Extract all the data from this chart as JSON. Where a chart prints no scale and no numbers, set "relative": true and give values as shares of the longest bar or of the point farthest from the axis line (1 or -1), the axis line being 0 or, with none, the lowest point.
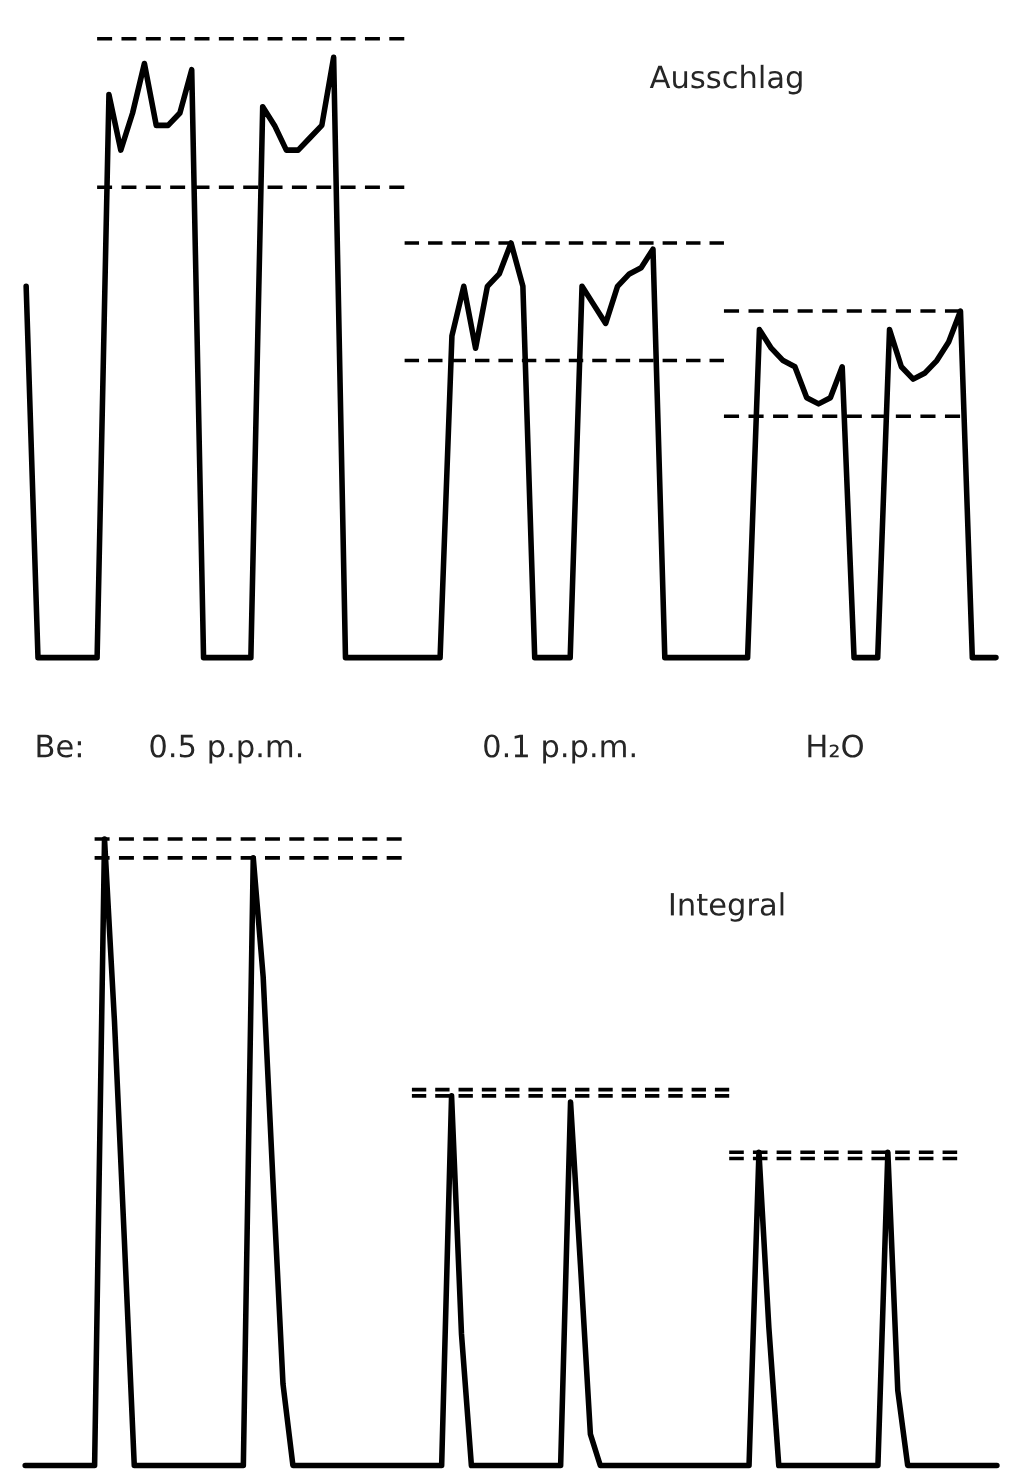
{
  "chart_data": [
    {
      "type": "line",
      "title": "Ausschlag",
      "relative": true,
      "annotations": [
        "Be:",
        "0.5 p.p.m.",
        "0.1 p.p.m.",
        "H₂O"
      ],
      "categories": [
        null,
        null,
        null,
        null,
        null,
        null,
        null,
        null,
        null,
        null,
        null,
        null,
        null,
        null,
        null,
        null,
        null,
        null,
        null,
        null,
        null,
        null,
        null,
        null,
        null,
        null,
        null,
        null,
        null,
        null,
        null,
        null,
        null,
        null,
        null,
        null,
        null,
        null,
        null,
        null,
        null,
        null,
        null,
        null,
        null,
        null,
        null,
        null,
        null,
        null,
        null,
        null,
        null,
        null,
        null,
        null,
        null,
        null,
        null,
        null,
        null,
        null,
        null,
        null,
        null,
        null,
        null,
        null,
        null,
        null,
        null,
        null,
        null,
        null,
        null,
        null,
        null,
        null,
        null,
        null,
        null,
        null,
        null
      ],
      "series": [
        {
          "color": "#000000",
          "line_style": "solid",
          "values": [
            0.6,
            0,
            0,
            0,
            0,
            0,
            0,
            0.91,
            0.82,
            0.88,
            0.96,
            0.86,
            0.86,
            0.88,
            0.95,
            0,
            0,
            0,
            0,
            0,
            0.89,
            0.86,
            0.82,
            0.82,
            0.84,
            0.86,
            0.97,
            0,
            0,
            0,
            0,
            0,
            0,
            0,
            0,
            0,
            0.52,
            0.6,
            0.5,
            0.6,
            0.62,
            0.67,
            0.6,
            0,
            0,
            0,
            0,
            0.6,
            0.57,
            0.54,
            0.6,
            0.62,
            0.63,
            0.66,
            0,
            0,
            0,
            0,
            0,
            0,
            0,
            0,
            0.53,
            0.5,
            0.48,
            0.47,
            0.42,
            0.41,
            0.42,
            0.47,
            0,
            0,
            0,
            0.53,
            0.47,
            0.45,
            0.46,
            0.48,
            0.51,
            0.56,
            0,
            0,
            0
          ]
        },
        {
          "color": "#000000",
          "line_style": "dashed",
          "values": [
            null,
            null,
            null,
            null,
            null,
            null,
            1,
            1,
            1,
            1,
            1,
            1,
            1,
            1,
            1,
            1,
            1,
            1,
            1,
            1,
            1,
            1,
            1,
            1,
            1,
            1,
            1,
            1,
            1,
            1,
            1,
            1,
            1,
            null,
            null,
            null,
            null,
            null,
            null,
            null,
            null,
            null,
            null,
            null,
            null,
            null,
            null,
            null,
            null,
            null,
            null,
            null,
            null,
            null,
            null,
            null,
            null,
            null,
            null,
            null,
            null,
            null,
            null,
            null,
            null,
            null,
            null,
            null,
            null,
            null,
            null,
            null,
            null,
            null,
            null,
            null,
            null,
            null,
            null,
            null,
            null,
            null,
            null
          ]
        },
        {
          "color": "#000000",
          "line_style": "dashed",
          "values": [
            null,
            null,
            null,
            null,
            null,
            null,
            0.76,
            0.76,
            0.76,
            0.76,
            0.76,
            0.76,
            0.76,
            0.76,
            0.76,
            0.76,
            0.76,
            0.76,
            0.76,
            0.76,
            0.76,
            0.76,
            0.76,
            0.76,
            0.76,
            0.76,
            0.76,
            0.76,
            0.76,
            0.76,
            0.76,
            0.76,
            0.76,
            null,
            null,
            null,
            null,
            null,
            null,
            null,
            null,
            null,
            null,
            null,
            null,
            null,
            null,
            null,
            null,
            null,
            null,
            null,
            null,
            null,
            null,
            null,
            null,
            null,
            null,
            null,
            null,
            null,
            null,
            null,
            null,
            null,
            null,
            null,
            null,
            null,
            null,
            null,
            null,
            null,
            null,
            null,
            null,
            null,
            null,
            null,
            null,
            null,
            null
          ]
        },
        {
          "color": "#000000",
          "line_style": "dashed",
          "values": [
            null,
            null,
            null,
            null,
            null,
            null,
            null,
            null,
            null,
            null,
            null,
            null,
            null,
            null,
            null,
            null,
            null,
            null,
            null,
            null,
            null,
            null,
            null,
            null,
            null,
            null,
            null,
            null,
            null,
            null,
            null,
            null,
            0.67,
            0.67,
            0.67,
            0.67,
            0.67,
            0.67,
            0.67,
            0.67,
            0.67,
            0.67,
            0.67,
            0.67,
            0.67,
            0.67,
            0.67,
            0.67,
            0.67,
            0.67,
            0.67,
            0.67,
            0.67,
            0.67,
            0.67,
            0.67,
            0.67,
            0.67,
            0.67,
            0.67,
            null,
            null,
            null,
            null,
            null,
            null,
            null,
            null,
            null,
            null,
            null,
            null,
            null,
            null,
            null,
            null,
            null,
            null,
            null,
            null,
            null,
            null,
            null
          ]
        },
        {
          "color": "#000000",
          "line_style": "dashed",
          "values": [
            null,
            null,
            null,
            null,
            null,
            null,
            null,
            null,
            null,
            null,
            null,
            null,
            null,
            null,
            null,
            null,
            null,
            null,
            null,
            null,
            null,
            null,
            null,
            null,
            null,
            null,
            null,
            null,
            null,
            null,
            null,
            null,
            0.48,
            0.48,
            0.48,
            0.48,
            0.48,
            0.48,
            0.48,
            0.48,
            0.48,
            0.48,
            0.48,
            0.48,
            0.48,
            0.48,
            0.48,
            0.48,
            0.48,
            0.48,
            0.48,
            0.48,
            0.48,
            0.48,
            0.48,
            0.48,
            0.48,
            0.48,
            0.48,
            0.48,
            null,
            null,
            null,
            null,
            null,
            null,
            null,
            null,
            null,
            null,
            null,
            null,
            null,
            null,
            null,
            null,
            null,
            null,
            null,
            null,
            null,
            null,
            null
          ]
        },
        {
          "color": "#000000",
          "line_style": "dashed",
          "values": [
            null,
            null,
            null,
            null,
            null,
            null,
            null,
            null,
            null,
            null,
            null,
            null,
            null,
            null,
            null,
            null,
            null,
            null,
            null,
            null,
            null,
            null,
            null,
            null,
            null,
            null,
            null,
            null,
            null,
            null,
            null,
            null,
            null,
            null,
            null,
            null,
            null,
            null,
            null,
            null,
            null,
            null,
            null,
            null,
            null,
            null,
            null,
            null,
            null,
            null,
            null,
            null,
            null,
            null,
            null,
            null,
            null,
            null,
            null,
            0.56,
            0.56,
            0.56,
            0.56,
            0.56,
            0.56,
            0.56,
            0.56,
            0.56,
            0.56,
            0.56,
            0.56,
            0.56,
            0.56,
            0.56,
            0.56,
            0.56,
            0.56,
            0.56,
            0.56,
            0.56,
            null,
            null,
            null
          ]
        },
        {
          "color": "#000000",
          "line_style": "dashed",
          "values": [
            null,
            null,
            null,
            null,
            null,
            null,
            null,
            null,
            null,
            null,
            null,
            null,
            null,
            null,
            null,
            null,
            null,
            null,
            null,
            null,
            null,
            null,
            null,
            null,
            null,
            null,
            null,
            null,
            null,
            null,
            null,
            null,
            null,
            null,
            null,
            null,
            null,
            null,
            null,
            null,
            null,
            null,
            null,
            null,
            null,
            null,
            null,
            null,
            null,
            null,
            null,
            null,
            null,
            null,
            null,
            null,
            null,
            null,
            null,
            0.39,
            0.39,
            0.39,
            0.39,
            0.39,
            0.39,
            0.39,
            0.39,
            0.39,
            0.39,
            0.39,
            0.39,
            0.39,
            0.39,
            0.39,
            0.39,
            0.39,
            0.39,
            0.39,
            0.39,
            0.39,
            null,
            null,
            null
          ]
        }
      ]
    },
    {
      "type": "line",
      "title": "Integral",
      "relative": true,
      "categories": [
        null,
        null,
        null,
        null,
        null,
        null,
        null,
        null,
        null,
        null,
        null,
        null,
        null,
        null,
        null,
        null,
        null,
        null,
        null,
        null,
        null,
        null,
        null,
        null,
        null,
        null,
        null,
        null,
        null,
        null,
        null,
        null,
        null,
        null,
        null,
        null,
        null,
        null,
        null,
        null,
        null,
        null,
        null,
        null,
        null,
        null,
        null,
        null,
        null,
        null,
        null,
        null,
        null,
        null,
        null,
        null,
        null,
        null,
        null,
        null,
        null,
        null,
        null,
        null,
        null,
        null,
        null,
        null,
        null,
        null,
        null,
        null,
        null,
        null,
        null,
        null,
        null,
        null,
        null,
        null,
        null,
        null,
        null,
        null,
        null,
        null,
        null,
        null,
        null,
        null,
        null,
        null,
        null,
        null,
        null,
        null,
        null,
        null,
        null
      ],
      "series": [
        {
          "color": "#000000",
          "line_style": "solid",
          "values": [
            0,
            0,
            0,
            0,
            0,
            0,
            0,
            0,
            1.0,
            0.71,
            0.36,
            0,
            0,
            0,
            0,
            0,
            0,
            0,
            0,
            0,
            0,
            0,
            0,
            0.97,
            0.78,
            0.45,
            0.13,
            0,
            0,
            0,
            0,
            0,
            0,
            0,
            0,
            0,
            0,
            0,
            0,
            0,
            0,
            0,
            0,
            0.59,
            0.21,
            0,
            0,
            0,
            0,
            0,
            0,
            0,
            0,
            0,
            0,
            0.58,
            0.32,
            0.05,
            0,
            0,
            0,
            0,
            0,
            0,
            0,
            0,
            0,
            0,
            0,
            0,
            0,
            0,
            0,
            0,
            0.5,
            0.22,
            0,
            0,
            0,
            0,
            0,
            0,
            0,
            0,
            0,
            0,
            0,
            0.5,
            0.12,
            0,
            0,
            0,
            0,
            0,
            0,
            0,
            0,
            0,
            0
          ]
        },
        {
          "color": "#000000",
          "line_style": "dashed",
          "values": [
            null,
            null,
            null,
            null,
            null,
            null,
            null,
            1,
            1,
            1,
            1,
            1,
            1,
            1,
            1,
            1,
            1,
            1,
            1,
            1,
            1,
            1,
            1,
            1,
            1,
            1,
            1,
            1,
            1,
            1,
            1,
            1,
            1,
            1,
            1,
            1,
            1,
            1,
            1,
            null,
            null,
            null,
            null,
            null,
            null,
            null,
            null,
            null,
            null,
            null,
            null,
            null,
            null,
            null,
            null,
            null,
            null,
            null,
            null,
            null,
            null,
            null,
            null,
            null,
            null,
            null,
            null,
            null,
            null,
            null,
            null,
            null,
            null,
            null,
            null,
            null,
            null,
            null,
            null,
            null,
            null,
            null,
            null,
            null,
            null,
            null,
            null,
            null,
            null,
            null,
            null,
            null,
            null,
            null,
            null,
            null,
            null,
            null,
            null
          ]
        },
        {
          "color": "#000000",
          "line_style": "dashed",
          "values": [
            null,
            null,
            null,
            null,
            null,
            null,
            null,
            0.97,
            0.97,
            0.97,
            0.97,
            0.97,
            0.97,
            0.97,
            0.97,
            0.97,
            0.97,
            0.97,
            0.97,
            0.97,
            0.97,
            0.97,
            0.97,
            0.97,
            0.97,
            0.97,
            0.97,
            0.97,
            0.97,
            0.97,
            0.97,
            0.97,
            0.97,
            0.97,
            0.97,
            0.97,
            0.97,
            0.97,
            0.97,
            null,
            null,
            null,
            null,
            null,
            null,
            null,
            null,
            null,
            null,
            null,
            null,
            null,
            null,
            null,
            null,
            null,
            null,
            null,
            null,
            null,
            null,
            null,
            null,
            null,
            null,
            null,
            null,
            null,
            null,
            null,
            null,
            null,
            null,
            null,
            null,
            null,
            null,
            null,
            null,
            null,
            null,
            null,
            null,
            null,
            null,
            null,
            null,
            null,
            null,
            null,
            null,
            null,
            null,
            null,
            null,
            null,
            null,
            null,
            null
          ]
        },
        {
          "color": "#000000",
          "line_style": "dashed",
          "values": [
            null,
            null,
            null,
            null,
            null,
            null,
            null,
            null,
            null,
            null,
            null,
            null,
            null,
            null,
            null,
            null,
            null,
            null,
            null,
            null,
            null,
            null,
            null,
            null,
            null,
            null,
            null,
            null,
            null,
            null,
            null,
            null,
            null,
            null,
            null,
            null,
            null,
            null,
            null,
            0.6,
            0.6,
            0.6,
            0.6,
            0.6,
            0.6,
            0.6,
            0.6,
            0.6,
            0.6,
            0.6,
            0.6,
            0.6,
            0.6,
            0.6,
            0.6,
            0.6,
            0.6,
            0.6,
            0.6,
            0.6,
            0.6,
            0.6,
            0.6,
            0.6,
            0.6,
            0.6,
            0.6,
            0.6,
            0.6,
            0.6,
            0.6,
            0.6,
            null,
            null,
            null,
            null,
            null,
            null,
            null,
            null,
            null,
            null,
            null,
            null,
            null,
            null,
            null,
            null,
            null,
            null,
            null,
            null,
            null,
            null,
            null,
            null,
            null,
            null,
            null
          ]
        },
        {
          "color": "#000000",
          "line_style": "dashed",
          "values": [
            null,
            null,
            null,
            null,
            null,
            null,
            null,
            null,
            null,
            null,
            null,
            null,
            null,
            null,
            null,
            null,
            null,
            null,
            null,
            null,
            null,
            null,
            null,
            null,
            null,
            null,
            null,
            null,
            null,
            null,
            null,
            null,
            null,
            null,
            null,
            null,
            null,
            null,
            null,
            0.59,
            0.59,
            0.59,
            0.59,
            0.59,
            0.59,
            0.59,
            0.59,
            0.59,
            0.59,
            0.59,
            0.59,
            0.59,
            0.59,
            0.59,
            0.59,
            0.59,
            0.59,
            0.59,
            0.59,
            0.59,
            0.59,
            0.59,
            0.59,
            0.59,
            0.59,
            0.59,
            0.59,
            0.59,
            0.59,
            0.59,
            0.59,
            0.59,
            null,
            null,
            null,
            null,
            null,
            null,
            null,
            null,
            null,
            null,
            null,
            null,
            null,
            null,
            null,
            null,
            null,
            null,
            null,
            null,
            null,
            null,
            null,
            null,
            null,
            null,
            null
          ]
        },
        {
          "color": "#000000",
          "line_style": "dashed",
          "values": [
            null,
            null,
            null,
            null,
            null,
            null,
            null,
            null,
            null,
            null,
            null,
            null,
            null,
            null,
            null,
            null,
            null,
            null,
            null,
            null,
            null,
            null,
            null,
            null,
            null,
            null,
            null,
            null,
            null,
            null,
            null,
            null,
            null,
            null,
            null,
            null,
            null,
            null,
            null,
            null,
            null,
            null,
            null,
            null,
            null,
            null,
            null,
            null,
            null,
            null,
            null,
            null,
            null,
            null,
            null,
            null,
            null,
            null,
            null,
            null,
            null,
            null,
            null,
            null,
            null,
            null,
            null,
            null,
            null,
            null,
            null,
            0.5,
            0.5,
            0.5,
            0.5,
            0.5,
            0.5,
            0.5,
            0.5,
            0.5,
            0.5,
            0.5,
            0.5,
            0.5,
            0.5,
            0.5,
            0.5,
            0.5,
            0.5,
            0.5,
            0.5,
            0.5,
            0.5,
            0.5,
            0.5,
            null,
            null,
            null,
            null
          ]
        },
        {
          "color": "#000000",
          "line_style": "dashed",
          "values": [
            null,
            null,
            null,
            null,
            null,
            null,
            null,
            null,
            null,
            null,
            null,
            null,
            null,
            null,
            null,
            null,
            null,
            null,
            null,
            null,
            null,
            null,
            null,
            null,
            null,
            null,
            null,
            null,
            null,
            null,
            null,
            null,
            null,
            null,
            null,
            null,
            null,
            null,
            null,
            null,
            null,
            null,
            null,
            null,
            null,
            null,
            null,
            null,
            null,
            null,
            null,
            null,
            null,
            null,
            null,
            null,
            null,
            null,
            null,
            null,
            null,
            null,
            null,
            null,
            null,
            null,
            null,
            null,
            null,
            null,
            null,
            0.49,
            0.49,
            0.49,
            0.49,
            0.49,
            0.49,
            0.49,
            0.49,
            0.49,
            0.49,
            0.49,
            0.49,
            0.49,
            0.49,
            0.49,
            0.49,
            0.49,
            0.49,
            0.49,
            0.49,
            0.49,
            0.49,
            0.49,
            0.49,
            null,
            null,
            null,
            null
          ]
        }
      ]
    }
  ]
}
